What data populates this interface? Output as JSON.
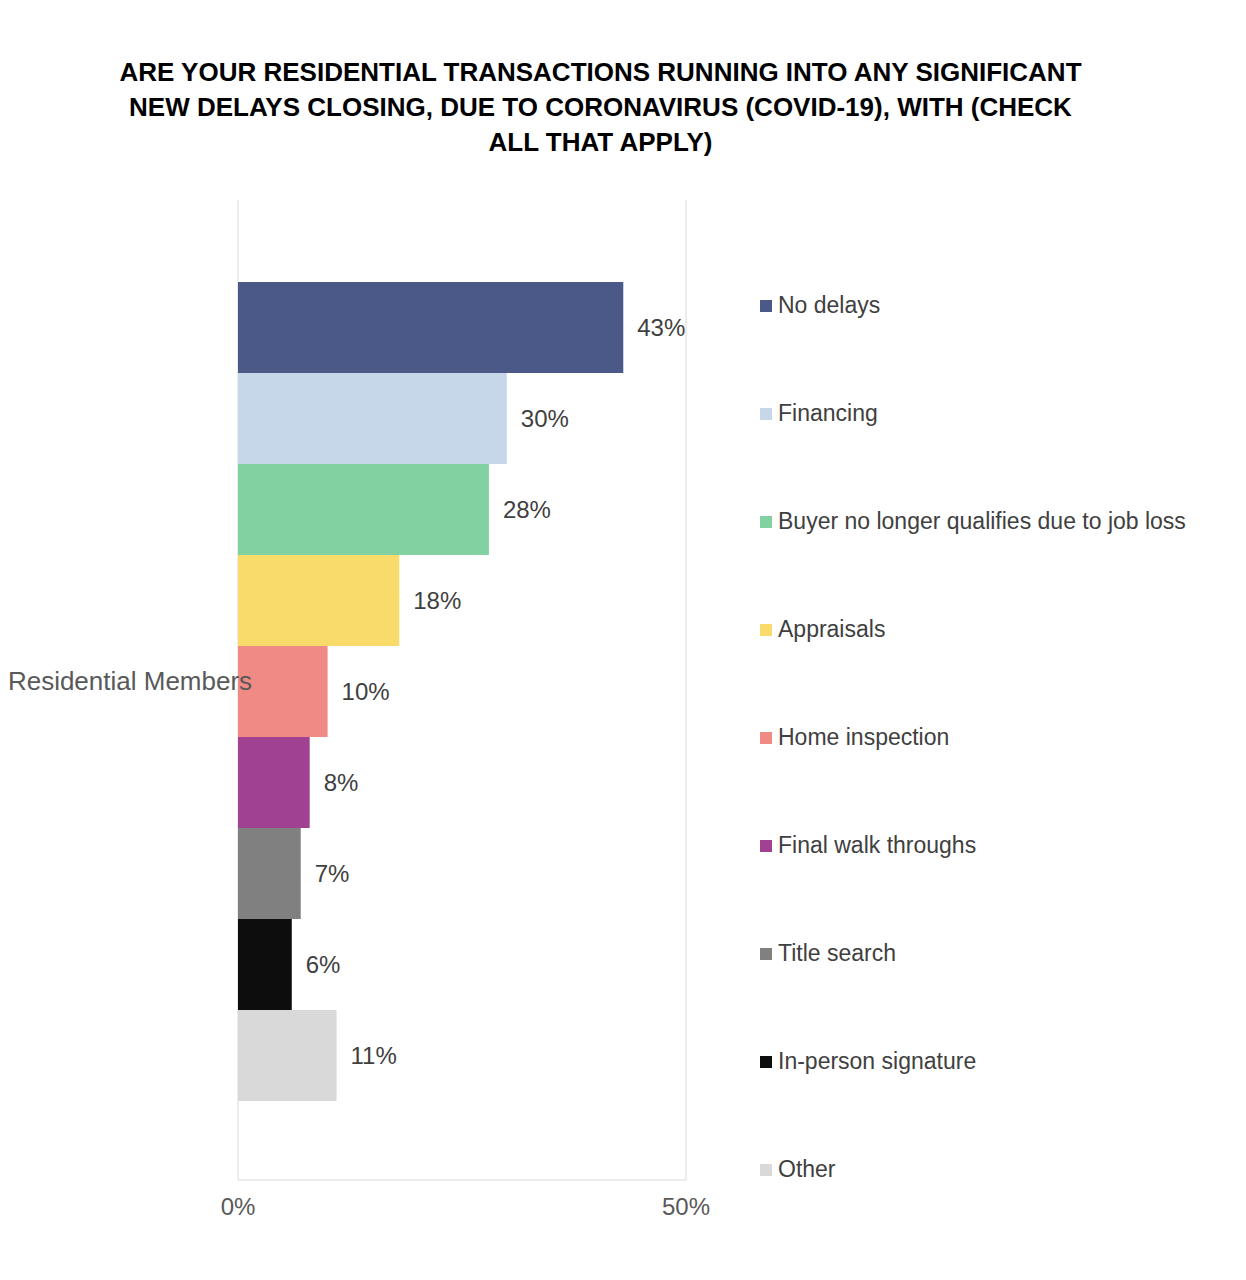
{
  "chart_data": {
    "type": "bar",
    "title": "ARE YOUR RESIDENTIAL TRANSACTIONS RUNNING INTO ANY SIGNIFICANT NEW DELAYS CLOSING, DUE TO CORONAVIRUS (COVID-19), WITH (CHECK ALL THAT APPLY)",
    "orientation": "horizontal",
    "categories": [
      "Residential Members"
    ],
    "series": [
      {
        "name": "No delays",
        "color": "#4a5988",
        "values": [
          43
        ],
        "value_labels": [
          "43%"
        ]
      },
      {
        "name": "Financing",
        "color": "#c5d7e8",
        "values": [
          30
        ],
        "value_labels": [
          "30%"
        ]
      },
      {
        "name": "Buyer no longer qualifies due to job loss",
        "color": "#82d1a0",
        "values": [
          28
        ],
        "value_labels": [
          "28%"
        ]
      },
      {
        "name": "Appraisals",
        "color": "#f8db6a",
        "values": [
          18
        ],
        "value_labels": [
          "18%"
        ]
      },
      {
        "name": "Home inspection",
        "color": "#f08a84",
        "values": [
          10
        ],
        "value_labels": [
          "10%"
        ]
      },
      {
        "name": "Final walk throughs",
        "color": "#a04191",
        "values": [
          8
        ],
        "value_labels": [
          "8%"
        ]
      },
      {
        "name": "Title search",
        "color": "#808080",
        "values": [
          7
        ],
        "value_labels": [
          "7%"
        ]
      },
      {
        "name": "In-person signature",
        "color": "#0d0d0d",
        "values": [
          6
        ],
        "value_labels": [
          "6%"
        ]
      },
      {
        "name": "Other",
        "color": "#d9d9d9",
        "values": [
          11
        ],
        "value_labels": [
          "11%"
        ]
      }
    ],
    "xlim": [
      0,
      50
    ],
    "xticks": [
      {
        "value": 0,
        "label": "0%"
      },
      {
        "value": 50,
        "label": "50%"
      }
    ],
    "grid": true,
    "legend": "right",
    "data_labels": true
  }
}
